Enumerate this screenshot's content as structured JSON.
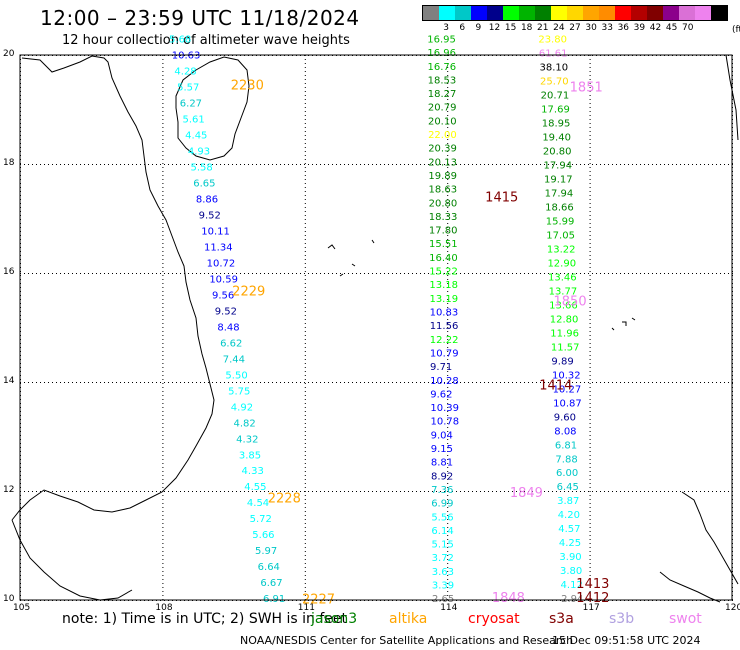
{
  "title": "12:00  –  23:59  UTC  11/18/2024",
  "subtitle": "12 hour collection of altimeter wave heights",
  "legend": {
    "ticks": [
      "3",
      "6",
      "9",
      "12",
      "15",
      "18",
      "21",
      "24",
      "27",
      "30",
      "33",
      "36",
      "39",
      "42",
      "45",
      "70"
    ],
    "unit": "(ft)",
    "colors": [
      "#808080",
      "#00ffff",
      "#00c8c8",
      "#0000ff",
      "#00008b",
      "#00ff00",
      "#00b400",
      "#008000",
      "#ffff00",
      "#ffd700",
      "#ffa500",
      "#ff8c00",
      "#ff0000",
      "#b40000",
      "#800000",
      "#8b008b",
      "#da70d6",
      "#ee82ee",
      "#000000"
    ]
  },
  "axes": {
    "lon_labels": [
      "105",
      "108",
      "111",
      "114",
      "117",
      "120"
    ],
    "lat_labels": [
      "20",
      "18",
      "16",
      "14",
      "12",
      "10"
    ]
  },
  "passes": [
    {
      "time": "2230",
      "color": "#ffa500",
      "lon": 109.44,
      "lat": 19.37
    },
    {
      "time": "2229",
      "color": "#ffa500",
      "lon": 109.47,
      "lat": 15.59
    },
    {
      "time": "2228",
      "color": "#ffa500",
      "lon": 110.22,
      "lat": 11.79
    },
    {
      "time": "2227",
      "color": "#ffa500",
      "lon": 110.94,
      "lat": 9.94
    },
    {
      "time": "1851",
      "color": "#ee82ee",
      "lon": 116.58,
      "lat": 19.33
    },
    {
      "time": "1850",
      "color": "#ee82ee",
      "lon": 116.24,
      "lat": 15.4
    },
    {
      "time": "1849",
      "color": "#ee82ee",
      "lon": 115.32,
      "lat": 11.89
    },
    {
      "time": "1848",
      "color": "#ee82ee",
      "lon": 114.94,
      "lat": 9.96
    },
    {
      "time": "1415",
      "color": "#800000",
      "lon": 114.8,
      "lat": 17.31
    },
    {
      "time": "1414",
      "color": "#800000",
      "lon": 115.94,
      "lat": 13.86
    },
    {
      "time": "1413",
      "color": "#800000",
      "lon": 116.72,
      "lat": 10.22
    },
    {
      "time": "1412",
      "color": "#800000",
      "lon": 116.72,
      "lat": 9.96
    }
  ],
  "tracks": [
    {
      "id": "track-2230",
      "start": [
        108.14,
        20.23
      ],
      "end": [
        110.12,
        9.96
      ],
      "values": [
        "5.68",
        "10.63",
        "4.28",
        "5.57",
        "6.27",
        "5.61",
        "4.45",
        "4.93",
        "5.58",
        "6.65",
        "8.86",
        "9.52",
        "10.11",
        "11.34",
        "10.72",
        "10.59",
        "9.56",
        "9.52",
        "8.48",
        "6.62",
        "7.44",
        "5.50",
        "5.75",
        "4.92",
        "4.82",
        "4.32",
        "3.85",
        "4.33",
        "4.55",
        "4.54",
        "5.72",
        "5.66",
        "5.97",
        "6.64",
        "6.67",
        "6.91"
      ],
      "colors": [
        "#00ffff",
        "#0000ff",
        "#00ffff",
        "#00ffff",
        "#00c8c8",
        "#00ffff",
        "#00ffff",
        "#00ffff",
        "#00ffff",
        "#00c8c8",
        "#0000ff",
        "#00008b",
        "#0000ff",
        "#0000ff",
        "#0000ff",
        "#0000ff",
        "#0000ff",
        "#00008b",
        "#0000ff",
        "#00c8c8",
        "#00c8c8",
        "#00ffff",
        "#00ffff",
        "#00ffff",
        "#00c8c8",
        "#00c8c8",
        "#00ffff",
        "#00ffff",
        "#00ffff",
        "#00ffff",
        "#00ffff",
        "#00ffff",
        "#00c8c8",
        "#00c8c8",
        "#00c8c8",
        "#00c8c8"
      ]
    },
    {
      "id": "track-1415",
      "start": [
        113.58,
        20.23
      ],
      "end": [
        113.68,
        9.96
      ],
      "values": [
        "16.95",
        "16.96",
        "16.76",
        "18.53",
        "18.27",
        "20.79",
        "20.10",
        "22.00",
        "20.39",
        "20.13",
        "19.89",
        "18.63",
        "20.80",
        "18.33",
        "17.80",
        "15.51",
        "16.40",
        "15.22",
        "13.18",
        "13.19",
        "10.83",
        "11.56",
        "12.22",
        "10.79",
        "9.71",
        "10.28",
        "9.62",
        "10.39",
        "10.78",
        "9.04",
        "9.15",
        "8.81",
        "8.92",
        "7.36",
        "6.99",
        "5.56",
        "6.14",
        "5.15",
        "3.72",
        "3.63",
        "3.39",
        "2.65"
      ],
      "colors": [
        "#00b400",
        "#00b400",
        "#00b400",
        "#008000",
        "#008000",
        "#008000",
        "#008000",
        "#ffff00",
        "#008000",
        "#008000",
        "#008000",
        "#008000",
        "#008000",
        "#008000",
        "#008000",
        "#00b400",
        "#00b400",
        "#00ff00",
        "#00ff00",
        "#00ff00",
        "#0000ff",
        "#00008b",
        "#00ff00",
        "#0000ff",
        "#00008b",
        "#0000ff",
        "#0000ff",
        "#0000ff",
        "#0000ff",
        "#0000ff",
        "#0000ff",
        "#0000ff",
        "#00008b",
        "#00c8c8",
        "#00c8c8",
        "#00ffff",
        "#00ffff",
        "#00ffff",
        "#00ffff",
        "#00ffff",
        "#00ffff",
        "#808080"
      ]
    },
    {
      "id": "track-1851",
      "start": [
        115.92,
        20.23
      ],
      "end": [
        116.4,
        9.96
      ],
      "values": [
        "23.80",
        "61.61",
        "38.10",
        "25.70",
        "20.71",
        "17.69",
        "18.95",
        "19.40",
        "20.80",
        "17.94",
        "19.17",
        "17.94",
        "18.66",
        "15.99",
        "17.05",
        "13.22",
        "12.90",
        "13.46",
        "13.77",
        "13.66",
        "12.80",
        "11.96",
        "11.57",
        "9.89",
        "10.32",
        "10.27",
        "10.87",
        "9.60",
        "8.08",
        "6.81",
        "7.88",
        "6.00",
        "6.45",
        "3.87",
        "4.20",
        "4.57",
        "4.25",
        "3.90",
        "3.80",
        "4.12",
        "2.94"
      ],
      "colors": [
        "#ffff00",
        "#ee82ee",
        "#000000",
        "#ffd700",
        "#008000",
        "#00b400",
        "#008000",
        "#008000",
        "#008000",
        "#008000",
        "#008000",
        "#008000",
        "#008000",
        "#00b400",
        "#00b400",
        "#00ff00",
        "#00ff00",
        "#00ff00",
        "#00ff00",
        "#00ff00",
        "#00ff00",
        "#00ff00",
        "#00ff00",
        "#00008b",
        "#0000ff",
        "#0000ff",
        "#0000ff",
        "#00008b",
        "#0000ff",
        "#00c8c8",
        "#00c8c8",
        "#00c8c8",
        "#00c8c8",
        "#00ffff",
        "#00ffff",
        "#00ffff",
        "#00ffff",
        "#00ffff",
        "#00ffff",
        "#00ffff",
        "#808080"
      ]
    }
  ],
  "footer": {
    "note": "note:  1) Time is in UTC;  2) SWH is in feet",
    "satellites": [
      {
        "name": "jason3",
        "color": "#008000",
        "left": 311
      },
      {
        "name": "altika",
        "color": "#ffa500",
        "left": 389
      },
      {
        "name": "cryosat",
        "color": "#ff0000",
        "left": 468
      },
      {
        "name": "s3a",
        "color": "#800000",
        "left": 549
      },
      {
        "name": "s3b",
        "color": "#b0a0e0",
        "left": 609
      },
      {
        "name": "swot",
        "color": "#ee82ee",
        "left": 669
      }
    ],
    "credit": "NOAA/NESDIS Center for Satellite Applications and Research",
    "timestamp": "15 Dec 09:51:58 UTC 2024"
  }
}
